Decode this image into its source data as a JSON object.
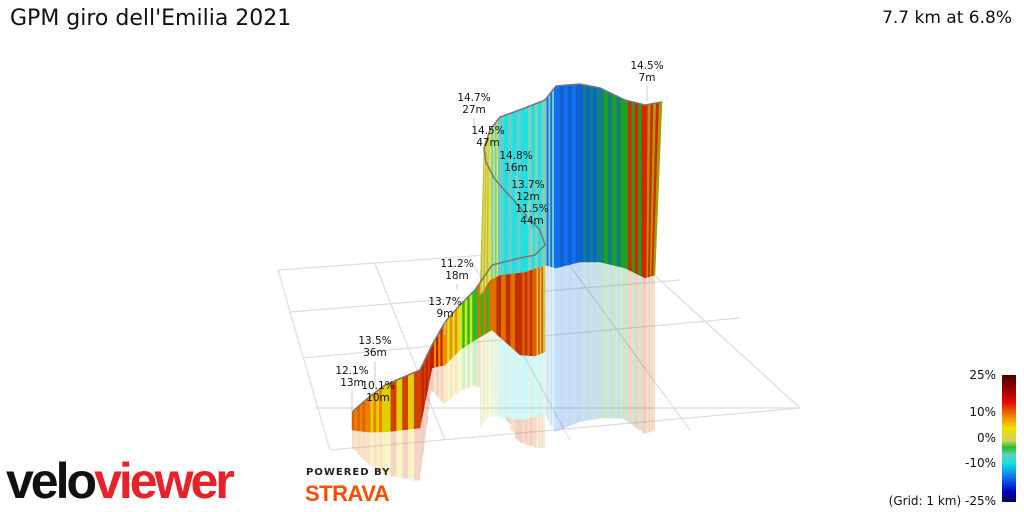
{
  "header": {
    "title": "GPM giro dell'Emilia 2021",
    "summary": "7.7 km at 6.8%"
  },
  "chart_data": {
    "type": "3d-profile",
    "title": "GPM giro dell'Emilia 2021",
    "distance_km": 7.7,
    "avg_gradient_pct": 6.8,
    "grid_note": "(Grid: 1 km)",
    "annotations": [
      {
        "gradient": "12.1%",
        "length": "13m"
      },
      {
        "gradient": "10.1%",
        "length": "10m"
      },
      {
        "gradient": "13.5%",
        "length": "36m"
      },
      {
        "gradient": "13.7%",
        "length": "9m"
      },
      {
        "gradient": "11.2%",
        "length": "18m"
      },
      {
        "gradient": "11.5%",
        "length": "44m"
      },
      {
        "gradient": "13.7%",
        "length": "12m"
      },
      {
        "gradient": "14.8%",
        "length": "16m"
      },
      {
        "gradient": "14.5%",
        "length": "47m"
      },
      {
        "gradient": "14.7%",
        "length": "27m"
      },
      {
        "gradient": "14.5%",
        "length": "7m"
      }
    ],
    "color_scale": {
      "ticks": [
        "25%",
        "10%",
        "0%",
        "-10%",
        "-25%"
      ],
      "colors": [
        "#4a0000",
        "#e01000",
        "#f0e000",
        "#20c020",
        "#10e0e0",
        "#1060f0",
        "#000050"
      ]
    }
  },
  "branding": {
    "logo_left": "velo",
    "logo_right": "viewer",
    "powered": "POWERED BY",
    "strava": "STRAVA"
  }
}
